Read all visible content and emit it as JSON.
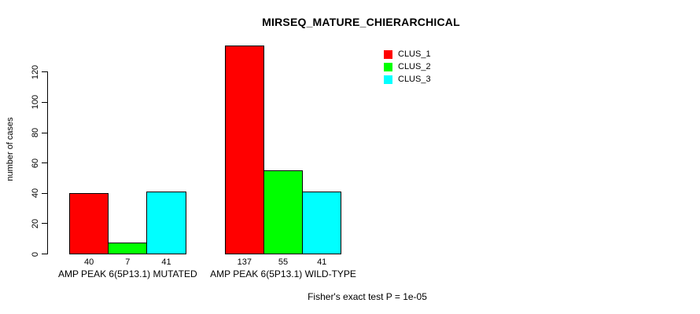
{
  "chart_data": {
    "type": "bar",
    "title": "MIRSEQ_MATURE_CHIERARCHICAL",
    "ylabel": "number of cases",
    "xlabel": "",
    "footer": "Fisher's exact test P = 1e-05",
    "categories": [
      "AMP PEAK 6(5P13.1) MUTATED",
      "AMP PEAK 6(5P13.1) WILD-TYPE"
    ],
    "series": [
      {
        "name": "CLUS_1",
        "color": "#ff0000",
        "values": [
          40,
          137
        ]
      },
      {
        "name": "CLUS_2",
        "color": "#00ff00",
        "values": [
          7,
          55
        ]
      },
      {
        "name": "CLUS_3",
        "color": "#00ffff",
        "values": [
          41,
          41
        ]
      }
    ],
    "bar_labels": [
      [
        "40",
        "7",
        "41"
      ],
      [
        "137",
        "55",
        "41"
      ]
    ],
    "yticks": [
      0,
      20,
      40,
      60,
      80,
      100,
      120
    ],
    "ylim": [
      0,
      120
    ],
    "grid": false,
    "legend_position": "top-right",
    "axis_color": "#000000",
    "bar_border_color": "#000000",
    "background": "#ffffff"
  }
}
